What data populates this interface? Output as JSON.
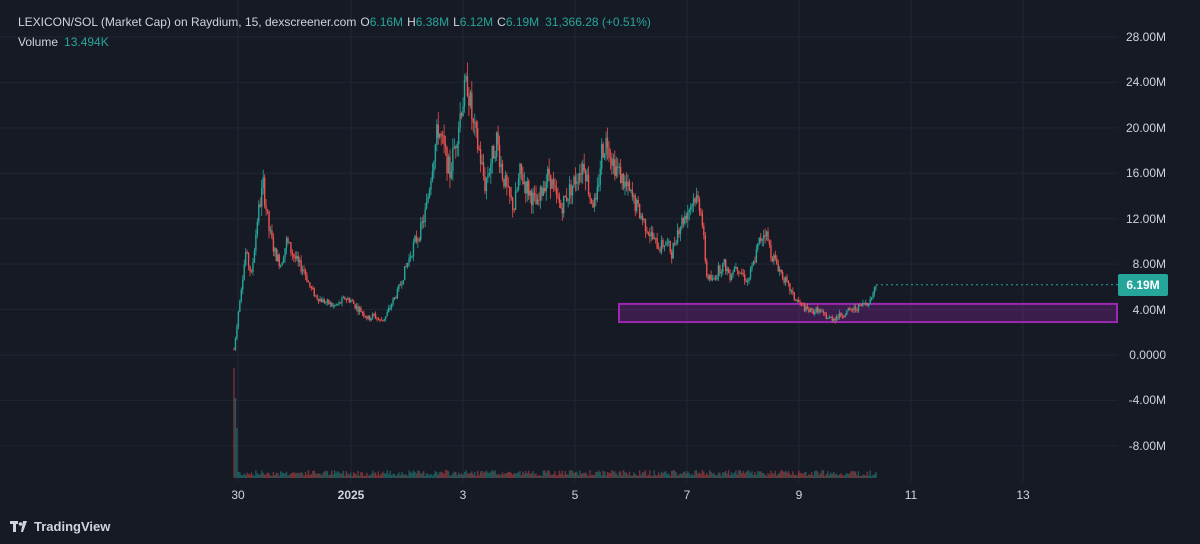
{
  "legend": {
    "title": "LEXICON/SOL (Market Cap) on Raydium, 15, dexscreener.com",
    "open_key": "O",
    "open_val": "6.16M",
    "high_key": "H",
    "high_val": "6.38M",
    "low_key": "L",
    "low_val": "6.12M",
    "close_key": "C",
    "close_val": "6.19M",
    "change": "31,366.28 (+0.51%)"
  },
  "volume": {
    "label": "Volume",
    "value": "13.494K"
  },
  "price_axis": {
    "labels": [
      "28.00M",
      "24.00M",
      "20.00M",
      "16.00M",
      "12.00M",
      "8.00M",
      "4.00M",
      "0.0000",
      "-4.00M",
      "-8.00M"
    ],
    "values": [
      28,
      24,
      20,
      16,
      12,
      8,
      4,
      0,
      -4,
      -8
    ],
    "last_price": "6.19M",
    "last_value": 6.19
  },
  "time_axis": {
    "labels": [
      "30",
      "2025",
      "3",
      "5",
      "7",
      "9",
      "11",
      "13"
    ],
    "bold": [
      false,
      true,
      false,
      false,
      false,
      false,
      false,
      false
    ]
  },
  "zone": {
    "low": 2.9,
    "high": 4.5,
    "start_label": "5",
    "color": "#9c27b0"
  },
  "colors": {
    "up": "#26a69a",
    "down": "#ef5350",
    "grid": "#232632",
    "background": "#161a25"
  },
  "chart_data": {
    "type": "line",
    "series": [
      {
        "values": [
          0.5,
          5,
          9,
          7,
          12,
          15,
          11,
          9,
          8,
          10,
          9,
          8,
          7.5,
          6,
          5.2,
          4.8,
          4.6,
          4.3,
          4.5,
          5,
          4.8,
          4.2,
          3.8,
          3.2,
          3.5,
          3.0,
          3.4,
          4.5,
          5.5,
          7,
          8.5,
          10,
          11,
          13,
          17,
          20,
          18,
          16,
          19,
          22,
          24,
          20,
          18,
          15,
          17,
          19,
          16,
          14,
          13,
          16,
          15,
          14,
          13,
          15,
          16,
          14,
          13,
          14,
          15,
          16,
          17,
          14,
          13,
          18,
          19,
          17,
          16,
          15,
          14,
          13,
          12,
          11,
          10,
          9.5,
          10,
          9,
          11,
          12,
          13,
          14,
          13,
          7,
          6.5,
          7.5,
          8,
          7,
          8,
          7.2,
          6.5,
          8,
          10,
          11,
          9,
          8,
          7,
          6,
          5,
          4.5,
          4,
          3.8,
          4,
          3.5,
          3.2,
          3.3,
          3.5,
          3.8,
          4.0,
          4.2,
          4.5,
          4.8,
          6.19
        ]
      }
    ],
    "ylim": [
      -10,
      30
    ],
    "grid": true
  }
}
